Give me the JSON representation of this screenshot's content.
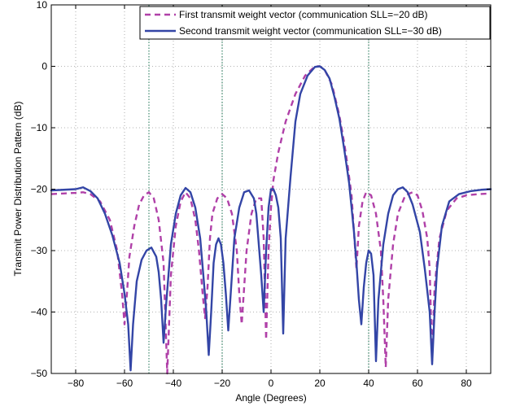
{
  "chart_data": {
    "type": "line",
    "title": "",
    "xlabel": "Angle (Degrees)",
    "ylabel": "Transmit Power Distribution Pattern (dB)",
    "xlim": [
      -90,
      90
    ],
    "ylim": [
      -50,
      10
    ],
    "xticks": [
      -80,
      -60,
      -40,
      -20,
      0,
      20,
      40,
      60,
      80
    ],
    "yticks": [
      10,
      0,
      -10,
      -20,
      -30,
      -40,
      -50
    ],
    "grid": true,
    "legend_position": "top-right",
    "vertical_markers": [
      -50,
      -20,
      40
    ],
    "series": [
      {
        "name": "First transmit weight vector (communication SLL=−20 dB)",
        "color": "#b040a8",
        "style": "dashed",
        "points": [
          [
            -90,
            -20.8
          ],
          [
            -85,
            -20.7
          ],
          [
            -80,
            -20.6
          ],
          [
            -77,
            -20.5
          ],
          [
            -74,
            -20.8
          ],
          [
            -70,
            -22
          ],
          [
            -66,
            -25
          ],
          [
            -63,
            -30
          ],
          [
            -61,
            -37
          ],
          [
            -60,
            -42
          ],
          [
            -59,
            -37
          ],
          [
            -58,
            -31
          ],
          [
            -56,
            -26
          ],
          [
            -54,
            -22.5
          ],
          [
            -52,
            -21
          ],
          [
            -50,
            -20.5
          ],
          [
            -48,
            -21.5
          ],
          [
            -46,
            -25
          ],
          [
            -44,
            -32
          ],
          [
            -42.5,
            -50
          ],
          [
            -41,
            -34
          ],
          [
            -39,
            -26
          ],
          [
            -37,
            -22
          ],
          [
            -35,
            -20.5
          ],
          [
            -33,
            -21.5
          ],
          [
            -31,
            -25
          ],
          [
            -29.5,
            -30
          ],
          [
            -28,
            -37
          ],
          [
            -27,
            -41
          ],
          [
            -26,
            -36
          ],
          [
            -25,
            -28
          ],
          [
            -24,
            -24
          ],
          [
            -22,
            -21.5
          ],
          [
            -20,
            -20.8
          ],
          [
            -18,
            -21.5
          ],
          [
            -16,
            -24
          ],
          [
            -14,
            -30
          ],
          [
            -13,
            -37
          ],
          [
            -12,
            -42
          ],
          [
            -11,
            -36
          ],
          [
            -10,
            -30
          ],
          [
            -8,
            -24
          ],
          [
            -6,
            -21.5
          ],
          [
            -4,
            -21.5
          ],
          [
            -3,
            -28
          ],
          [
            -2,
            -44.5
          ],
          [
            -1,
            -30
          ],
          [
            0,
            -23
          ],
          [
            1,
            -18.5
          ],
          [
            3,
            -14
          ],
          [
            6,
            -9
          ],
          [
            10,
            -4.5
          ],
          [
            14,
            -1.5
          ],
          [
            18,
            0
          ],
          [
            20,
            0
          ],
          [
            22,
            -0.6
          ],
          [
            25,
            -3
          ],
          [
            28,
            -8
          ],
          [
            30,
            -12.5
          ],
          [
            31.5,
            -16.5
          ],
          [
            33,
            -21
          ],
          [
            34,
            -27
          ],
          [
            35,
            -33
          ],
          [
            36,
            -26
          ],
          [
            37.5,
            -22
          ],
          [
            39,
            -20.5
          ],
          [
            41,
            -21
          ],
          [
            43,
            -24
          ],
          [
            45,
            -30
          ],
          [
            46,
            -38
          ],
          [
            47,
            -49
          ],
          [
            48,
            -38
          ],
          [
            50,
            -29
          ],
          [
            52,
            -24
          ],
          [
            55,
            -21
          ],
          [
            58,
            -20.5
          ],
          [
            60,
            -21
          ],
          [
            62,
            -23.5
          ],
          [
            64,
            -28
          ],
          [
            65,
            -33
          ],
          [
            66,
            -48
          ],
          [
            67,
            -36
          ],
          [
            69,
            -28
          ],
          [
            72,
            -23.5
          ],
          [
            76,
            -21.5
          ],
          [
            80,
            -21
          ],
          [
            85,
            -20.8
          ],
          [
            90,
            -20.7
          ]
        ]
      },
      {
        "name": "Second transmit weight vector (communication SLL=−30 dB)",
        "color": "#3345a6",
        "style": "solid",
        "points": [
          [
            -90,
            -20.2
          ],
          [
            -85,
            -20.1
          ],
          [
            -80,
            -20
          ],
          [
            -77,
            -19.7
          ],
          [
            -74,
            -20.3
          ],
          [
            -71,
            -21.5
          ],
          [
            -68,
            -24
          ],
          [
            -65,
            -27.5
          ],
          [
            -62,
            -32
          ],
          [
            -60,
            -37
          ],
          [
            -58.5,
            -42
          ],
          [
            -57.5,
            -49.5
          ],
          [
            -56.5,
            -42
          ],
          [
            -55,
            -35
          ],
          [
            -53,
            -31.5
          ],
          [
            -51,
            -30
          ],
          [
            -49,
            -29.5
          ],
          [
            -47,
            -31
          ],
          [
            -46,
            -33.5
          ],
          [
            -45,
            -38
          ],
          [
            -44,
            -45
          ],
          [
            -43,
            -39
          ],
          [
            -41,
            -29
          ],
          [
            -39,
            -24
          ],
          [
            -37,
            -21
          ],
          [
            -35,
            -19.8
          ],
          [
            -33,
            -20.5
          ],
          [
            -31,
            -23
          ],
          [
            -29,
            -28
          ],
          [
            -27.5,
            -35
          ],
          [
            -26.5,
            -40
          ],
          [
            -25.5,
            -47
          ],
          [
            -24.5,
            -40
          ],
          [
            -23.5,
            -32
          ],
          [
            -22.5,
            -29
          ],
          [
            -21.5,
            -28
          ],
          [
            -20.5,
            -29
          ],
          [
            -19.5,
            -32
          ],
          [
            -18.5,
            -37
          ],
          [
            -17.5,
            -43
          ],
          [
            -16.5,
            -37
          ],
          [
            -15,
            -28
          ],
          [
            -13,
            -23
          ],
          [
            -11,
            -20.5
          ],
          [
            -9,
            -20.2
          ],
          [
            -7,
            -21.5
          ],
          [
            -6,
            -24
          ],
          [
            -5,
            -29
          ],
          [
            -4,
            -34
          ],
          [
            -3,
            -40
          ],
          [
            -2,
            -30
          ],
          [
            -1,
            -23
          ],
          [
            0,
            -20
          ],
          [
            1,
            -20
          ],
          [
            2,
            -21
          ],
          [
            3,
            -23
          ],
          [
            4,
            -28
          ],
          [
            5,
            -43.5
          ],
          [
            6,
            -28
          ],
          [
            8,
            -18
          ],
          [
            10,
            -9
          ],
          [
            12,
            -4.5
          ],
          [
            15,
            -1.5
          ],
          [
            18,
            -0.1
          ],
          [
            20,
            0
          ],
          [
            22,
            -0.6
          ],
          [
            24,
            -2
          ],
          [
            26,
            -5
          ],
          [
            28,
            -8.5
          ],
          [
            30,
            -13.5
          ],
          [
            32,
            -19
          ],
          [
            33,
            -23
          ],
          [
            34,
            -27
          ],
          [
            35,
            -32
          ],
          [
            36,
            -38
          ],
          [
            37,
            -42
          ],
          [
            38,
            -36
          ],
          [
            39,
            -32
          ],
          [
            40,
            -30
          ],
          [
            41,
            -30.5
          ],
          [
            42,
            -34
          ],
          [
            43,
            -48
          ],
          [
            44,
            -38
          ],
          [
            46,
            -29
          ],
          [
            48,
            -24
          ],
          [
            50,
            -21
          ],
          [
            52,
            -20
          ],
          [
            54,
            -19.7
          ],
          [
            56,
            -20.5
          ],
          [
            58,
            -22.5
          ],
          [
            61,
            -27
          ],
          [
            63,
            -33
          ],
          [
            65,
            -40
          ],
          [
            66,
            -48.5
          ],
          [
            67,
            -40
          ],
          [
            68,
            -33
          ],
          [
            70,
            -26
          ],
          [
            73,
            -22
          ],
          [
            77,
            -20.8
          ],
          [
            82,
            -20.3
          ],
          [
            86,
            -20.1
          ],
          [
            90,
            -20
          ]
        ]
      }
    ]
  }
}
